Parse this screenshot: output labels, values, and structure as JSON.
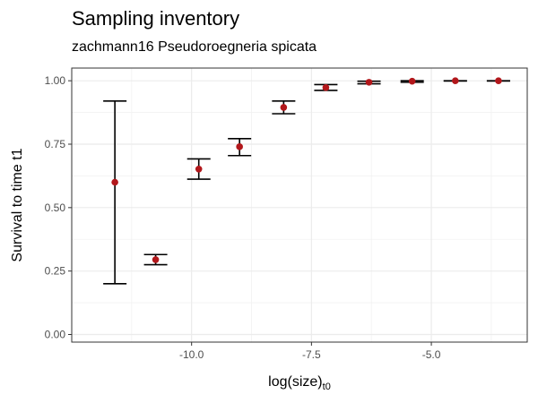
{
  "chart_data": {
    "type": "scatter",
    "title": "Sampling inventory",
    "subtitle": "zachmann16 Pseudoroegneria spicata",
    "xlabel": "log(size)",
    "xlabel_subscript": "t0",
    "ylabel": "Survival to time t1",
    "xlim": [
      -12.5,
      -3.0
    ],
    "ylim": [
      -0.03,
      1.05
    ],
    "x_ticks": [
      -10.0,
      -7.5,
      -5.0
    ],
    "x_tick_labels": [
      "-10.0",
      "-7.5",
      "-5.0"
    ],
    "y_ticks": [
      0.0,
      0.25,
      0.5,
      0.75,
      1.0
    ],
    "y_tick_labels": [
      "0.00",
      "0.25",
      "0.50",
      "0.75",
      "1.00"
    ],
    "grid": true,
    "point_color": "#b2171b",
    "errorbar_color": "#000000",
    "points": [
      {
        "x": -11.6,
        "y": 0.6,
        "ymin": 0.2,
        "ymax": 0.92
      },
      {
        "x": -10.75,
        "y": 0.295,
        "ymin": 0.275,
        "ymax": 0.315
      },
      {
        "x": -9.85,
        "y": 0.652,
        "ymin": 0.612,
        "ymax": 0.692
      },
      {
        "x": -9.0,
        "y": 0.74,
        "ymin": 0.705,
        "ymax": 0.772
      },
      {
        "x": -8.08,
        "y": 0.895,
        "ymin": 0.87,
        "ymax": 0.92
      },
      {
        "x": -7.2,
        "y": 0.973,
        "ymin": 0.962,
        "ymax": 0.985
      },
      {
        "x": -6.3,
        "y": 0.994,
        "ymin": 0.988,
        "ymax": 0.998
      },
      {
        "x": -5.4,
        "y": 0.998,
        "ymin": 0.994,
        "ymax": 1.0
      },
      {
        "x": -4.5,
        "y": 1.0,
        "ymin": 0.999,
        "ymax": 1.0
      },
      {
        "x": -3.6,
        "y": 1.0,
        "ymin": 0.999,
        "ymax": 1.0
      }
    ]
  }
}
